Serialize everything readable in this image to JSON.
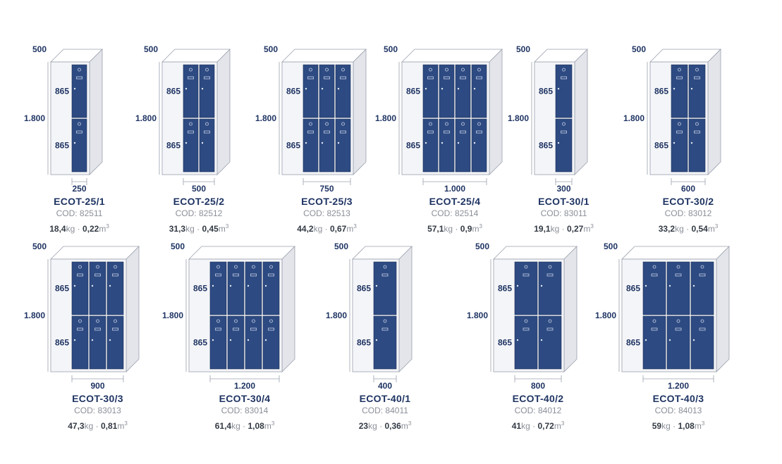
{
  "colors": {
    "door": "#2d4a82",
    "door_stroke": "#1b2f58",
    "frame": "#f4f5f8",
    "frame_stroke": "#9aa0ac",
    "side": "#e3e5ea",
    "top": "#ffffff",
    "dimension_text": "#1f3463",
    "model_name": "#1f3463",
    "muted_text": "#8a8f98",
    "value_text": "#333a44"
  },
  "labels": {
    "depth": "500",
    "height": "1.800",
    "compartment_height": "865",
    "code_prefix": "COD:",
    "weight_unit": "kg",
    "separator": "·",
    "volume_unit": "m",
    "volume_exponent": "3"
  },
  "models": [
    {
      "name": "ECOT-25/1",
      "code": "82511",
      "weight": "18,4",
      "volume": "0,22",
      "columns": 1,
      "column_width": "250",
      "width": "250"
    },
    {
      "name": "ECOT-25/2",
      "code": "82512",
      "weight": "31,3",
      "volume": "0,45",
      "columns": 2,
      "column_width": "250",
      "width": "500"
    },
    {
      "name": "ECOT-25/3",
      "code": "82513",
      "weight": "44,2",
      "volume": "0,67",
      "columns": 3,
      "column_width": "250",
      "width": "750"
    },
    {
      "name": "ECOT-25/4",
      "code": "82514",
      "weight": "57,1",
      "volume": "0,9",
      "columns": 4,
      "column_width": "250",
      "width": "1.000"
    },
    {
      "name": "ECOT-30/1",
      "code": "83011",
      "weight": "19,1",
      "volume": "0,27",
      "columns": 1,
      "column_width": "300",
      "width": "300"
    },
    {
      "name": "ECOT-30/2",
      "code": "83012",
      "weight": "33,2",
      "volume": "0,54",
      "columns": 2,
      "column_width": "300",
      "width": "600"
    },
    {
      "name": "ECOT-30/3",
      "code": "83013",
      "weight": "47,3",
      "volume": "0,81",
      "columns": 3,
      "column_width": "300",
      "width": "900"
    },
    {
      "name": "ECOT-30/4",
      "code": "83014",
      "weight": "61,4",
      "volume": "1,08",
      "columns": 4,
      "column_width": "300",
      "width": "1.200"
    },
    {
      "name": "ECOT-40/1",
      "code": "84011",
      "weight": "23",
      "volume": "0,36",
      "columns": 1,
      "column_width": "400",
      "width": "400"
    },
    {
      "name": "ECOT-40/2",
      "code": "84012",
      "weight": "41",
      "volume": "0,72",
      "columns": 2,
      "column_width": "400",
      "width": "800"
    },
    {
      "name": "ECOT-40/3",
      "code": "84013",
      "weight": "59",
      "volume": "1,08",
      "columns": 3,
      "column_width": "400",
      "width": "1.200"
    }
  ]
}
